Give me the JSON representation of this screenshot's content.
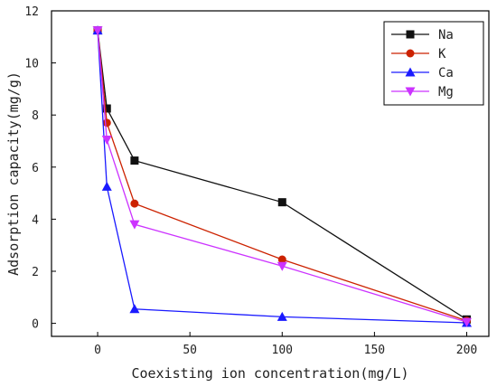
{
  "chart_data": {
    "type": "line",
    "title": "",
    "xlabel": "Coexisting ion concentration(mg/L)",
    "ylabel": "Adsorption capacity(mg/g)",
    "xlim": [
      -25,
      212
    ],
    "ylim": [
      -0.5,
      12
    ],
    "xticks": [
      0,
      50,
      100,
      150,
      200
    ],
    "yticks": [
      0,
      2,
      4,
      6,
      8,
      10,
      12
    ],
    "grid": false,
    "legend_position": "top-right",
    "series": [
      {
        "name": "Na",
        "marker": "square",
        "color": "#111111",
        "x": [
          0,
          5,
          20,
          100,
          200
        ],
        "y": [
          11.25,
          8.25,
          6.25,
          4.65,
          0.15
        ]
      },
      {
        "name": "K",
        "marker": "circle",
        "color": "#cc2200",
        "x": [
          0,
          5,
          20,
          100,
          200
        ],
        "y": [
          11.25,
          7.7,
          4.6,
          2.45,
          0.1
        ]
      },
      {
        "name": "Ca",
        "marker": "triangle-up",
        "color": "#1a1aff",
        "x": [
          0,
          5,
          20,
          100,
          200
        ],
        "y": [
          11.25,
          5.25,
          0.55,
          0.25,
          0.02
        ]
      },
      {
        "name": "Mg",
        "marker": "triangle-down",
        "color": "#cc33ff",
        "x": [
          0,
          5,
          20,
          100,
          200
        ],
        "y": [
          11.25,
          7.05,
          3.8,
          2.2,
          0.05
        ]
      }
    ]
  }
}
